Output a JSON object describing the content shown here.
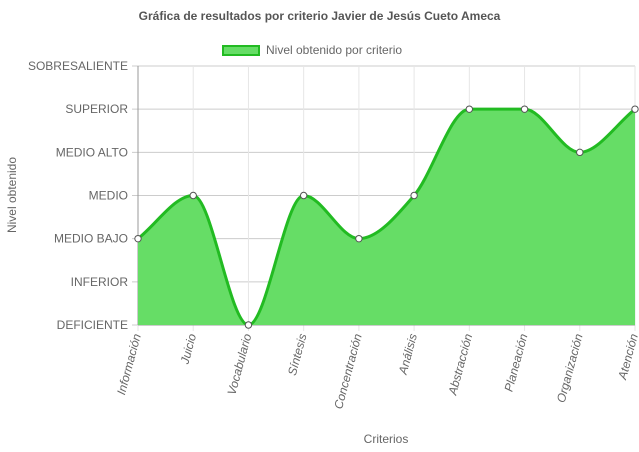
{
  "chart_data": {
    "type": "area",
    "title": "Gráfica de resultados por criterio Javier de Jesús Cueto Ameca",
    "xlabel": "Criterios",
    "ylabel": "Nivel obtenido",
    "categories": [
      "Información",
      "Juicio",
      "Vocabulario",
      "Síntesis",
      "Concentración",
      "Análisis",
      "Abstracción",
      "Planeación",
      "Organización",
      "Atención"
    ],
    "y_levels": [
      "DEFICIENTE",
      "INFERIOR",
      "MEDIO BAJO",
      "MEDIO",
      "MEDIO ALTO",
      "SUPERIOR",
      "SOBRESALIENTE"
    ],
    "ylim": [
      0,
      6
    ],
    "series": [
      {
        "name": "Nivel obtenido por criterio",
        "values": [
          2,
          3,
          0,
          3,
          2,
          3,
          5,
          5,
          4,
          5
        ]
      }
    ],
    "grid": true,
    "legend_position": "top",
    "colors": {
      "fill": "#66dd66",
      "line": "#22bb22",
      "grid": "#cccccc",
      "point_fill": "#ffffff",
      "point_stroke": "#555555"
    }
  }
}
